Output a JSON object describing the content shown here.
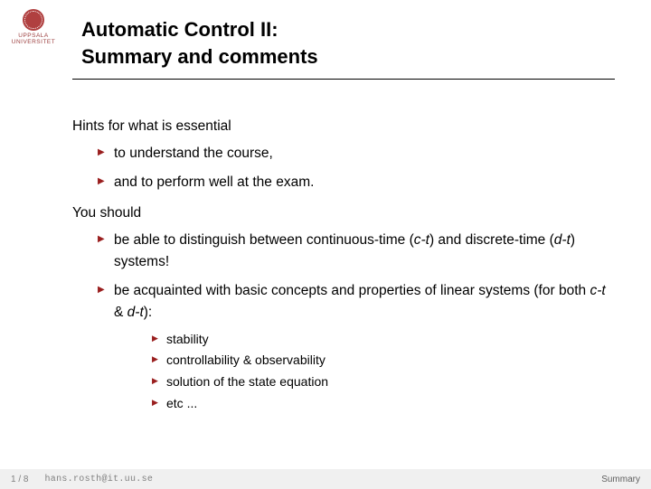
{
  "logo": {
    "line1": "UPPSALA",
    "line2": "UNIVERSITET",
    "seal_color": "#b04040"
  },
  "title": {
    "line1": "Automatic Control II:",
    "line2": "Summary and comments"
  },
  "body": {
    "intro1": "Hints for what is essential",
    "list1": {
      "a": "to understand the course,",
      "b": "and to perform well at the exam."
    },
    "intro2": "You should",
    "list2": {
      "a_pre": "be able to distinguish between continuous-time (",
      "a_ct": "c-t",
      "a_mid": ") and discrete-time (",
      "a_dt": "d-t",
      "a_post": ") systems!",
      "b_pre": "be acquainted with basic concepts and properties of linear systems (for both ",
      "b_ct": "c-t",
      "b_amp": " & ",
      "b_dt": "d-t",
      "b_post": "):",
      "sub": {
        "s1": "stability",
        "s2": "controllability & observability",
        "s3": "solution of the state equation",
        "s4": "etc ..."
      }
    }
  },
  "footer": {
    "page": "1 / 8",
    "email": "hans.rosth@it.uu.se",
    "section": "Summary"
  },
  "style": {
    "bullet_color": "#9a1f1f",
    "rule_color": "#000000",
    "footer_bg": "#f0f0f0",
    "title_fontsize": 22,
    "body_fontsize": 15.5
  }
}
